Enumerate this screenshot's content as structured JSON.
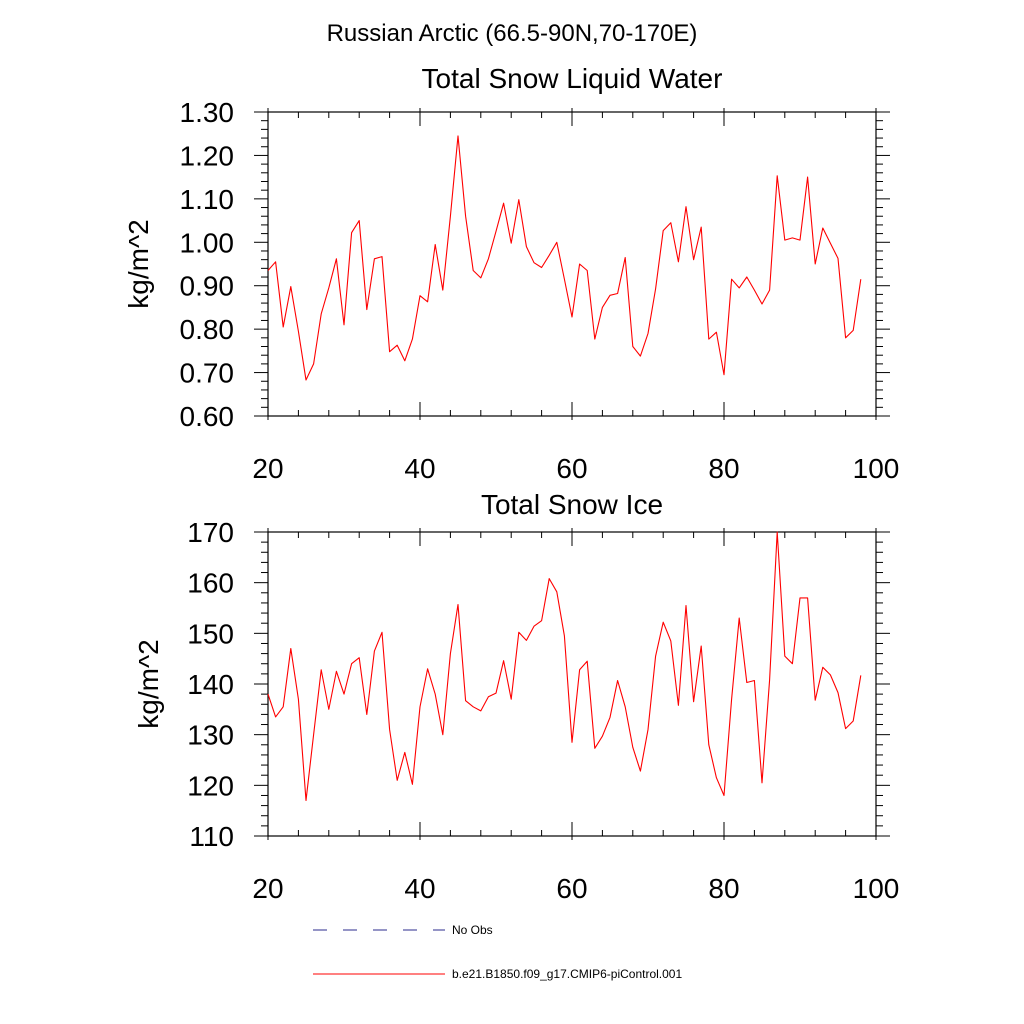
{
  "figure": {
    "suptitle": "Russian Arctic (66.5-90N,70-170E)"
  },
  "legend": {
    "entries": [
      {
        "label": "No Obs",
        "color": "#2b2b8c",
        "style": "dashed"
      },
      {
        "label": "b.e21.B1850.f09_g17.CMIP6-piControl.001",
        "color": "#ff0000",
        "style": "solid"
      }
    ]
  },
  "chart_data": [
    {
      "type": "line",
      "title": "Total Snow Liquid Water",
      "xlabel": "",
      "ylabel": "kg/m^2",
      "xlim": [
        20,
        100
      ],
      "ylim": [
        0.6,
        1.3
      ],
      "xticks": [
        20,
        40,
        60,
        80,
        100
      ],
      "xtick_labels": [
        "20",
        "40",
        "60",
        "80",
        "100"
      ],
      "yticks": [
        0.6,
        0.7,
        0.8,
        0.9,
        1.0,
        1.1,
        1.2,
        1.3
      ],
      "ytick_labels": [
        "0.60",
        "0.70",
        "0.80",
        "0.90",
        "1.00",
        "1.10",
        "1.20",
        "1.30"
      ],
      "series": [
        {
          "name": "b.e21.B1850.f09_g17.CMIP6-piControl.001",
          "color": "#ff0000",
          "x": [
            20,
            21,
            22,
            23,
            24,
            25,
            26,
            27,
            28,
            29,
            30,
            31,
            32,
            33,
            34,
            35,
            36,
            37,
            38,
            39,
            40,
            41,
            42,
            43,
            44,
            45,
            46,
            47,
            48,
            49,
            50,
            51,
            52,
            53,
            54,
            55,
            56,
            57,
            58,
            59,
            60,
            61,
            62,
            63,
            64,
            65,
            66,
            67,
            68,
            69,
            70,
            71,
            72,
            73,
            74,
            75,
            76,
            77,
            78,
            79,
            80,
            81,
            82,
            83,
            84,
            85,
            86,
            87,
            88,
            89,
            90,
            91,
            92,
            93,
            94,
            95,
            96,
            97,
            98
          ],
          "values": [
            0.935,
            0.955,
            0.805,
            0.898,
            0.795,
            0.683,
            0.72,
            0.835,
            0.895,
            0.962,
            0.81,
            1.022,
            1.05,
            0.845,
            0.962,
            0.967,
            0.748,
            0.763,
            0.727,
            0.777,
            0.877,
            0.863,
            0.995,
            0.89,
            1.06,
            1.245,
            1.06,
            0.935,
            0.918,
            0.962,
            1.025,
            1.09,
            0.998,
            1.098,
            0.99,
            0.953,
            0.942,
            0.97,
            1.0,
            0.915,
            0.828,
            0.95,
            0.935,
            0.777,
            0.85,
            0.878,
            0.882,
            0.965,
            0.76,
            0.738,
            0.79,
            0.893,
            1.027,
            1.045,
            0.955,
            1.082,
            0.96,
            1.035,
            0.777,
            0.793,
            0.695,
            0.915,
            0.895,
            0.92,
            0.89,
            0.858,
            0.89,
            1.153,
            1.005,
            1.01,
            1.005,
            1.15,
            0.95,
            1.033,
            0.998,
            0.963,
            0.78,
            0.797,
            0.915
          ]
        }
      ]
    },
    {
      "type": "line",
      "title": "Total Snow Ice",
      "xlabel": "",
      "ylabel": "kg/m^2",
      "xlim": [
        20,
        100
      ],
      "ylim": [
        110,
        170
      ],
      "xticks": [
        20,
        40,
        60,
        80,
        100
      ],
      "xtick_labels": [
        "20",
        "40",
        "60",
        "80",
        "100"
      ],
      "yticks": [
        110,
        120,
        130,
        140,
        150,
        160,
        170
      ],
      "ytick_labels": [
        "110",
        "120",
        "130",
        "140",
        "150",
        "160",
        "170"
      ],
      "series": [
        {
          "name": "b.e21.B1850.f09_g17.CMIP6-piControl.001",
          "color": "#ff0000",
          "x": [
            20,
            21,
            22,
            23,
            24,
            25,
            26,
            27,
            28,
            29,
            30,
            31,
            32,
            33,
            34,
            35,
            36,
            37,
            38,
            39,
            40,
            41,
            42,
            43,
            44,
            45,
            46,
            47,
            48,
            49,
            50,
            51,
            52,
            53,
            54,
            55,
            56,
            57,
            58,
            59,
            60,
            61,
            62,
            63,
            64,
            65,
            66,
            67,
            68,
            69,
            70,
            71,
            72,
            73,
            74,
            75,
            76,
            77,
            78,
            79,
            80,
            81,
            82,
            83,
            84,
            85,
            86,
            87,
            88,
            89,
            90,
            91,
            92,
            93,
            94,
            95,
            96,
            97,
            98
          ],
          "values": [
            138,
            133.5,
            135.5,
            147,
            137,
            117,
            130,
            142.8,
            135,
            142.5,
            138,
            144,
            145.2,
            134,
            146.5,
            150.2,
            131,
            121,
            126.5,
            120.2,
            135.5,
            143,
            138,
            130,
            146,
            155.7,
            136.7,
            135.5,
            134.7,
            137.5,
            138.2,
            144.6,
            137,
            150.2,
            148.6,
            151.4,
            152.5,
            160.8,
            158.2,
            149.5,
            128.5,
            142.8,
            144.5,
            127.3,
            129.7,
            133.4,
            140.7,
            135.5,
            127.5,
            122.8,
            131,
            145.5,
            152.2,
            148.5,
            135.8,
            155.5,
            136.5,
            147.5,
            128,
            121.5,
            118,
            137,
            153,
            140.3,
            140.7,
            120.5,
            140.8,
            170,
            145.5,
            144,
            157,
            157,
            136.8,
            143.3,
            141.8,
            138.3,
            131.2,
            132.7,
            141.7
          ]
        }
      ]
    }
  ]
}
